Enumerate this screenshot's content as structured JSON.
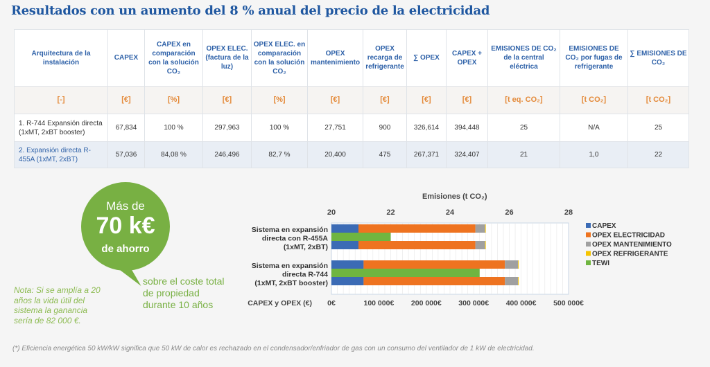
{
  "title": "Resultados con un aumento del 8 % anual del precio de la electricidad",
  "table": {
    "headers": [
      "Arquitectura de la instalación",
      "CAPEX",
      "CAPEX en comparación con la solución CO₂",
      "OPEX ELEC. (factura de la luz)",
      "OPEX ELEC. en comparación con la solución CO₂",
      "OPEX mantenimiento",
      "OPEX recarga de refrigerante",
      "∑ OPEX",
      "CAPEX + OPEX",
      "EMISIONES DE CO₂ de la central eléctrica",
      "EMISIONES DE CO₂ por fugas de refrigerante",
      "∑ EMISIONES DE CO₂"
    ],
    "units": [
      "[-]",
      "[€]",
      "[%]",
      "[€]",
      "[%]",
      "[€]",
      "[€]",
      "[€]",
      "[€]",
      "[t eq. CO₂]",
      "[t CO₂]",
      "[t CO₂]"
    ],
    "rows": [
      [
        "1. R-744 Expansión directa (1xMT, 2xBT booster)",
        "67,834",
        "100 %",
        "297,963",
        "100 %",
        "27,751",
        "900",
        "326,614",
        "394,448",
        "25",
        "N/A",
        "25"
      ],
      [
        "2. Expansión directa R-455A (1xMT, 2xBT)",
        "57,036",
        "84,08 %",
        "246,496",
        "82,7 %",
        "20,400",
        "475",
        "267,371",
        "324,407",
        "21",
        "1,0",
        "22"
      ]
    ]
  },
  "savings": {
    "pre": "Más de",
    "amount": "70 k€",
    "post": "de ahorro",
    "caption": "sobre el coste total de propiedad durante 10 años",
    "note": "Nota: Si se amplía a 20 años la vida útil del sistema la ganancia sería de 82 000 €."
  },
  "footnote": "(*) Eficiencia energética 50 kW/kW significa que 50 kW de calor es rechazado en el condensador/enfriador de gas con un consumo del ventilador de 1 kW de electricidad.",
  "chart_data": {
    "type": "bar",
    "orientation": "horizontal",
    "stacked": true,
    "categories": [
      "Sistema en expansión directa con R-455A (1xMT, 2xBT)",
      "Sistema en expansión directa R-744 (1xMT, 2xBT booster)"
    ],
    "category_lines": [
      [
        "Sistema en expansión",
        "directa con R-455A",
        "(1xMT, 2xBT)"
      ],
      [
        "Sistema en expansión",
        "directa R-744",
        "(1xMT, 2xBT booster)"
      ]
    ],
    "cost_axis": {
      "label": "CAPEX y OPEX (€)",
      "range": [
        0,
        500000
      ],
      "ticks": [
        "0€",
        "100 000€",
        "200 000€",
        "300 000€",
        "400 000€",
        "500 000€"
      ]
    },
    "emissions_axis": {
      "label": "Emisiones (t CO₂)",
      "range": [
        20,
        28
      ],
      "ticks": [
        "20",
        "22",
        "24",
        "26",
        "28"
      ]
    },
    "series": [
      {
        "name": "CAPEX",
        "color": "#3b6bb5",
        "values": [
          57036,
          67834
        ]
      },
      {
        "name": "OPEX ELECTRICIDAD",
        "color": "#ee7320",
        "values": [
          246496,
          297963
        ]
      },
      {
        "name": "OPEX MANTENIMIENTO",
        "color": "#a0a0a0",
        "values": [
          20400,
          27751
        ]
      },
      {
        "name": "OPEX REFRIGERANTE",
        "color": "#f5c400",
        "values": [
          475,
          900
        ]
      },
      {
        "name": "TEWI",
        "color": "#6fb540",
        "axis": "emissions",
        "values": [
          22,
          25
        ]
      }
    ],
    "legend": "right",
    "grid": true
  }
}
